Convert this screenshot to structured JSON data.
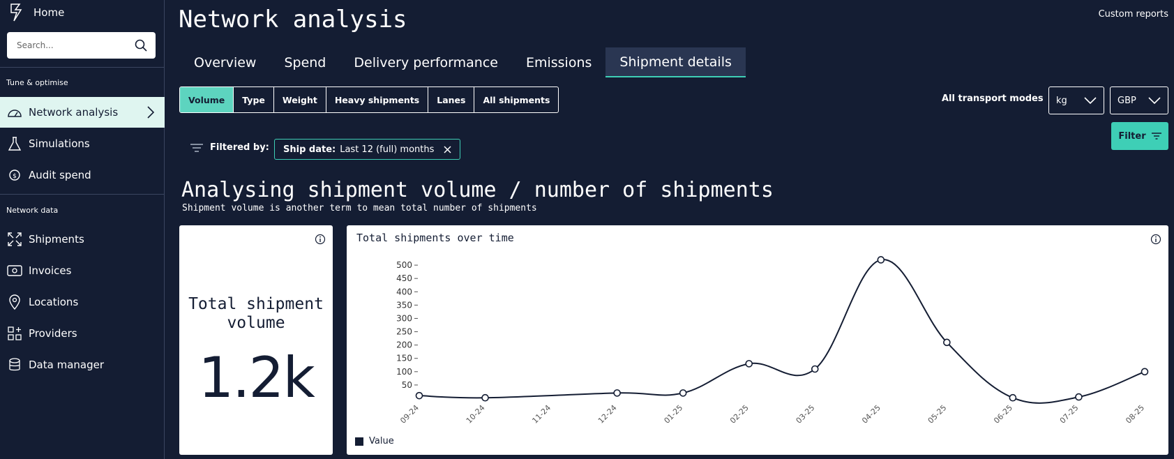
{
  "sidebar": {
    "home_label": "Home",
    "search_placeholder": "Search...",
    "section1": "Tune & optimise",
    "section2": "Network data",
    "items": [
      {
        "label": "Network analysis",
        "icon": "gauge-icon"
      },
      {
        "label": "Simulations",
        "icon": "flask-icon"
      },
      {
        "label": "Audit spend",
        "icon": "audit-icon"
      },
      {
        "label": "Shipments",
        "icon": "expand-icon"
      },
      {
        "label": "Invoices",
        "icon": "invoice-icon"
      },
      {
        "label": "Locations",
        "icon": "location-pin-icon"
      },
      {
        "label": "Providers",
        "icon": "providers-icon"
      },
      {
        "label": "Data manager",
        "icon": "database-icon"
      }
    ]
  },
  "header": {
    "title": "Network analysis",
    "custom_reports": "Custom reports"
  },
  "tabs": [
    "Overview",
    "Spend",
    "Delivery performance",
    "Emissions",
    "Shipment details"
  ],
  "active_tab": "Shipment details",
  "segments": [
    "Volume",
    "Type",
    "Weight",
    "Heavy shipments",
    "Lanes",
    "All shipments"
  ],
  "active_segment": "Volume",
  "controls": {
    "transport_modes": "All transport modes",
    "unit": "kg",
    "currency": "GBP",
    "filter_label": "Filter"
  },
  "filters": {
    "filtered_by": "Filtered by:",
    "chip_key": "Ship date:",
    "chip_value": "Last 12 (full) months"
  },
  "section": {
    "heading": "Analysing shipment volume / number of shipments",
    "subheading": "Shipment volume is another term to mean total number of shipments"
  },
  "metric": {
    "title": "Total shipment volume",
    "value": "1.2k"
  },
  "colors": {
    "background": "#141d33",
    "accent": "#3ecfb6",
    "line": "#141d33"
  },
  "chart_data": {
    "type": "line",
    "title": "Total shipments over time",
    "categories": [
      "09-24",
      "10-24",
      "11-24",
      "12-24",
      "01-25",
      "02-25",
      "03-25",
      "04-25",
      "05-25",
      "06-25",
      "07-25",
      "08-25"
    ],
    "series": [
      {
        "name": "Value",
        "values": [
          10,
          2,
          null,
          20,
          20,
          130,
          110,
          520,
          210,
          2,
          5,
          100
        ]
      }
    ],
    "yticks": [
      50,
      100,
      150,
      200,
      250,
      300,
      350,
      400,
      450,
      500
    ],
    "ylim": [
      0,
      550
    ],
    "legend": "bottom-left"
  }
}
